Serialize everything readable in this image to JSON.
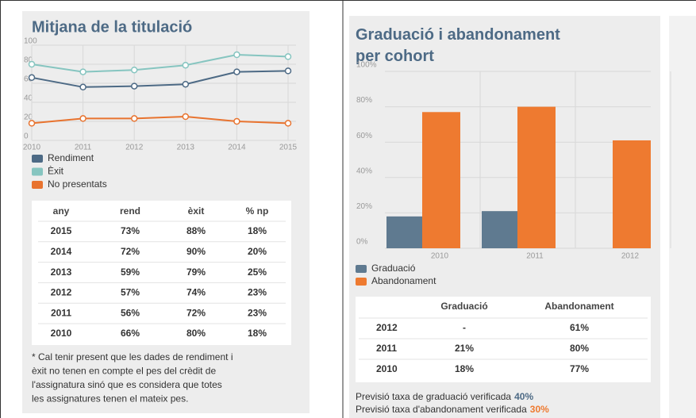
{
  "chart_data": [
    {
      "type": "line",
      "title": "Mitjana de la titulació",
      "categories": [
        "2010",
        "2011",
        "2012",
        "2013",
        "2014",
        "2015"
      ],
      "series": [
        {
          "name": "Rendiment",
          "color": "#4d6a85",
          "values": [
            66,
            56,
            57,
            59,
            72,
            73
          ]
        },
        {
          "name": "Èxit",
          "color": "#86c5c0",
          "values": [
            80,
            72,
            74,
            79,
            90,
            88
          ]
        },
        {
          "name": "No presentats",
          "color": "#e8732f",
          "values": [
            18,
            23,
            23,
            25,
            20,
            18
          ]
        }
      ],
      "ylim": [
        0,
        100
      ],
      "yticks": [
        0,
        20,
        40,
        60,
        80,
        100
      ],
      "grid": true
    },
    {
      "type": "bar",
      "title": "Graduació i abandonament per cohort",
      "categories": [
        "2010",
        "2011",
        "2012"
      ],
      "series": [
        {
          "name": "Graduació",
          "color": "#5f7a90",
          "values": [
            18,
            21,
            null
          ]
        },
        {
          "name": "Abandonament",
          "color": "#ee7a30",
          "values": [
            77,
            80,
            61
          ]
        }
      ],
      "ylim": [
        0,
        100
      ],
      "yticks": [
        {
          "value": 0,
          "label": "0%"
        },
        {
          "value": 20,
          "label": "20%"
        },
        {
          "value": 40,
          "label": "40%"
        },
        {
          "value": 60,
          "label": "60%"
        },
        {
          "value": 80,
          "label": "80%"
        },
        {
          "value": 100,
          "label": "100%"
        }
      ],
      "grid": true
    }
  ],
  "table1": {
    "header": [
      "any",
      "rend",
      "èxit",
      "% np"
    ],
    "rows": [
      [
        "2015",
        "73%",
        "88%",
        "18%"
      ],
      [
        "2014",
        "72%",
        "90%",
        "20%"
      ],
      [
        "2013",
        "59%",
        "79%",
        "25%"
      ],
      [
        "2012",
        "57%",
        "74%",
        "23%"
      ],
      [
        "2011",
        "56%",
        "72%",
        "23%"
      ],
      [
        "2010",
        "66%",
        "80%",
        "18%"
      ]
    ]
  },
  "note": [
    "* Cal tenir present que les dades de rendiment i",
    "èxit no tenen en compte el pes del crèdit de",
    "l'assignatura sinó que es considera que totes",
    "les assignatures tenen el mateix pes."
  ],
  "table2": {
    "header": [
      "Graduació",
      "Abandonament"
    ],
    "rows": [
      [
        "2012",
        "-",
        "61%"
      ],
      [
        "2011",
        "21%",
        "80%"
      ],
      [
        "2010",
        "18%",
        "77%"
      ]
    ]
  },
  "forecast": [
    {
      "text": "Previsió taxa de graduació verificada",
      "value": "40%"
    },
    {
      "text": "Previsió taxa d'abandonament verificada",
      "value": "30%"
    }
  ]
}
